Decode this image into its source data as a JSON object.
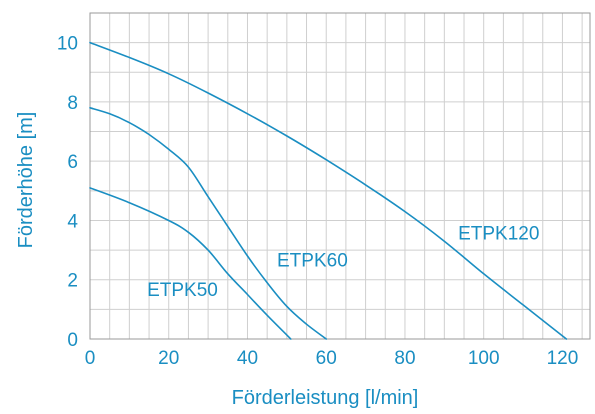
{
  "chart_data": {
    "type": "line",
    "xlabel": "Förderleistung [l/min]",
    "ylabel": "Förderhöhe [m]",
    "xlim": [
      0,
      127
    ],
    "ylim": [
      0,
      11
    ],
    "x_ticks": [
      0,
      20,
      40,
      60,
      80,
      100,
      120
    ],
    "y_ticks": [
      0,
      2,
      4,
      6,
      8,
      10
    ],
    "x_grid_step": 5,
    "y_grid_step": 1,
    "grid": true,
    "colors": {
      "line": "#1a8ec2",
      "text": "#1a8ec2",
      "grid": "#cfcfcf",
      "frame": "#9a9a9a"
    },
    "series": [
      {
        "name": "ETPK50",
        "points": [
          [
            0,
            5.1
          ],
          [
            10,
            4.6
          ],
          [
            20,
            4.0
          ],
          [
            25,
            3.6
          ],
          [
            30,
            3.0
          ],
          [
            35,
            2.2
          ],
          [
            40,
            1.5
          ],
          [
            45,
            0.8
          ],
          [
            51,
            0
          ]
        ]
      },
      {
        "name": "ETPK60",
        "points": [
          [
            0,
            7.8
          ],
          [
            5,
            7.6
          ],
          [
            10,
            7.3
          ],
          [
            15,
            6.9
          ],
          [
            20,
            6.4
          ],
          [
            25,
            5.8
          ],
          [
            30,
            4.8
          ],
          [
            35,
            3.8
          ],
          [
            40,
            2.8
          ],
          [
            45,
            1.9
          ],
          [
            50,
            1.1
          ],
          [
            55,
            0.5
          ],
          [
            60,
            0
          ]
        ]
      },
      {
        "name": "ETPK120",
        "points": [
          [
            0,
            10.0
          ],
          [
            10,
            9.5
          ],
          [
            20,
            8.95
          ],
          [
            30,
            8.3
          ],
          [
            40,
            7.6
          ],
          [
            50,
            6.85
          ],
          [
            60,
            6.05
          ],
          [
            70,
            5.2
          ],
          [
            80,
            4.3
          ],
          [
            90,
            3.3
          ],
          [
            100,
            2.2
          ],
          [
            110,
            1.15
          ],
          [
            121,
            0
          ]
        ]
      }
    ]
  }
}
